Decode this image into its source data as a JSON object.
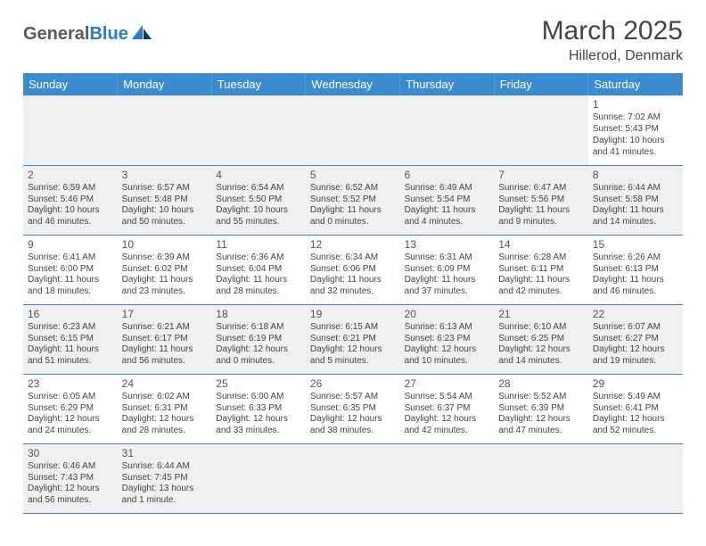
{
  "brand": {
    "part1": "General",
    "part2": "Blue"
  },
  "title": "March 2025",
  "location": "Hillerod, Denmark",
  "colors": {
    "header_bg": "#3b8bd0",
    "header_text": "#ffffff",
    "grid_line": "#3b8bd0",
    "alt_row_bg": "#f0f0f0",
    "text": "#444444",
    "brand_gray": "#5a5a5a",
    "brand_blue": "#2d7dc4"
  },
  "typography": {
    "title_fontsize": 30,
    "location_fontsize": 16,
    "dayhead_fontsize": 13,
    "cell_fontsize": 10,
    "daynum_fontsize": 12
  },
  "day_headers": [
    "Sunday",
    "Monday",
    "Tuesday",
    "Wednesday",
    "Thursday",
    "Friday",
    "Saturday"
  ],
  "weeks": [
    [
      null,
      null,
      null,
      null,
      null,
      null,
      {
        "n": "1",
        "sr": "Sunrise: 7:02 AM",
        "ss": "Sunset: 5:43 PM",
        "d1": "Daylight: 10 hours",
        "d2": "and 41 minutes."
      }
    ],
    [
      {
        "n": "2",
        "sr": "Sunrise: 6:59 AM",
        "ss": "Sunset: 5:46 PM",
        "d1": "Daylight: 10 hours",
        "d2": "and 46 minutes."
      },
      {
        "n": "3",
        "sr": "Sunrise: 6:57 AM",
        "ss": "Sunset: 5:48 PM",
        "d1": "Daylight: 10 hours",
        "d2": "and 50 minutes."
      },
      {
        "n": "4",
        "sr": "Sunrise: 6:54 AM",
        "ss": "Sunset: 5:50 PM",
        "d1": "Daylight: 10 hours",
        "d2": "and 55 minutes."
      },
      {
        "n": "5",
        "sr": "Sunrise: 6:52 AM",
        "ss": "Sunset: 5:52 PM",
        "d1": "Daylight: 11 hours",
        "d2": "and 0 minutes."
      },
      {
        "n": "6",
        "sr": "Sunrise: 6:49 AM",
        "ss": "Sunset: 5:54 PM",
        "d1": "Daylight: 11 hours",
        "d2": "and 4 minutes."
      },
      {
        "n": "7",
        "sr": "Sunrise: 6:47 AM",
        "ss": "Sunset: 5:56 PM",
        "d1": "Daylight: 11 hours",
        "d2": "and 9 minutes."
      },
      {
        "n": "8",
        "sr": "Sunrise: 6:44 AM",
        "ss": "Sunset: 5:58 PM",
        "d1": "Daylight: 11 hours",
        "d2": "and 14 minutes."
      }
    ],
    [
      {
        "n": "9",
        "sr": "Sunrise: 6:41 AM",
        "ss": "Sunset: 6:00 PM",
        "d1": "Daylight: 11 hours",
        "d2": "and 18 minutes."
      },
      {
        "n": "10",
        "sr": "Sunrise: 6:39 AM",
        "ss": "Sunset: 6:02 PM",
        "d1": "Daylight: 11 hours",
        "d2": "and 23 minutes."
      },
      {
        "n": "11",
        "sr": "Sunrise: 6:36 AM",
        "ss": "Sunset: 6:04 PM",
        "d1": "Daylight: 11 hours",
        "d2": "and 28 minutes."
      },
      {
        "n": "12",
        "sr": "Sunrise: 6:34 AM",
        "ss": "Sunset: 6:06 PM",
        "d1": "Daylight: 11 hours",
        "d2": "and 32 minutes."
      },
      {
        "n": "13",
        "sr": "Sunrise: 6:31 AM",
        "ss": "Sunset: 6:09 PM",
        "d1": "Daylight: 11 hours",
        "d2": "and 37 minutes."
      },
      {
        "n": "14",
        "sr": "Sunrise: 6:28 AM",
        "ss": "Sunset: 6:11 PM",
        "d1": "Daylight: 11 hours",
        "d2": "and 42 minutes."
      },
      {
        "n": "15",
        "sr": "Sunrise: 6:26 AM",
        "ss": "Sunset: 6:13 PM",
        "d1": "Daylight: 11 hours",
        "d2": "and 46 minutes."
      }
    ],
    [
      {
        "n": "16",
        "sr": "Sunrise: 6:23 AM",
        "ss": "Sunset: 6:15 PM",
        "d1": "Daylight: 11 hours",
        "d2": "and 51 minutes."
      },
      {
        "n": "17",
        "sr": "Sunrise: 6:21 AM",
        "ss": "Sunset: 6:17 PM",
        "d1": "Daylight: 11 hours",
        "d2": "and 56 minutes."
      },
      {
        "n": "18",
        "sr": "Sunrise: 6:18 AM",
        "ss": "Sunset: 6:19 PM",
        "d1": "Daylight: 12 hours",
        "d2": "and 0 minutes."
      },
      {
        "n": "19",
        "sr": "Sunrise: 6:15 AM",
        "ss": "Sunset: 6:21 PM",
        "d1": "Daylight: 12 hours",
        "d2": "and 5 minutes."
      },
      {
        "n": "20",
        "sr": "Sunrise: 6:13 AM",
        "ss": "Sunset: 6:23 PM",
        "d1": "Daylight: 12 hours",
        "d2": "and 10 minutes."
      },
      {
        "n": "21",
        "sr": "Sunrise: 6:10 AM",
        "ss": "Sunset: 6:25 PM",
        "d1": "Daylight: 12 hours",
        "d2": "and 14 minutes."
      },
      {
        "n": "22",
        "sr": "Sunrise: 6:07 AM",
        "ss": "Sunset: 6:27 PM",
        "d1": "Daylight: 12 hours",
        "d2": "and 19 minutes."
      }
    ],
    [
      {
        "n": "23",
        "sr": "Sunrise: 6:05 AM",
        "ss": "Sunset: 6:29 PM",
        "d1": "Daylight: 12 hours",
        "d2": "and 24 minutes."
      },
      {
        "n": "24",
        "sr": "Sunrise: 6:02 AM",
        "ss": "Sunset: 6:31 PM",
        "d1": "Daylight: 12 hours",
        "d2": "and 28 minutes."
      },
      {
        "n": "25",
        "sr": "Sunrise: 6:00 AM",
        "ss": "Sunset: 6:33 PM",
        "d1": "Daylight: 12 hours",
        "d2": "and 33 minutes."
      },
      {
        "n": "26",
        "sr": "Sunrise: 5:57 AM",
        "ss": "Sunset: 6:35 PM",
        "d1": "Daylight: 12 hours",
        "d2": "and 38 minutes."
      },
      {
        "n": "27",
        "sr": "Sunrise: 5:54 AM",
        "ss": "Sunset: 6:37 PM",
        "d1": "Daylight: 12 hours",
        "d2": "and 42 minutes."
      },
      {
        "n": "28",
        "sr": "Sunrise: 5:52 AM",
        "ss": "Sunset: 6:39 PM",
        "d1": "Daylight: 12 hours",
        "d2": "and 47 minutes."
      },
      {
        "n": "29",
        "sr": "Sunrise: 5:49 AM",
        "ss": "Sunset: 6:41 PM",
        "d1": "Daylight: 12 hours",
        "d2": "and 52 minutes."
      }
    ],
    [
      {
        "n": "30",
        "sr": "Sunrise: 6:46 AM",
        "ss": "Sunset: 7:43 PM",
        "d1": "Daylight: 12 hours",
        "d2": "and 56 minutes."
      },
      {
        "n": "31",
        "sr": "Sunrise: 6:44 AM",
        "ss": "Sunset: 7:45 PM",
        "d1": "Daylight: 13 hours",
        "d2": "and 1 minute."
      },
      null,
      null,
      null,
      null,
      null
    ]
  ]
}
